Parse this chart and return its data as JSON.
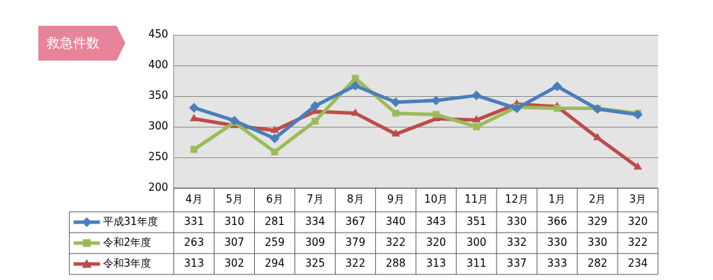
{
  "chart_data": {
    "type": "line",
    "title": "救急件数",
    "categories": [
      "4月",
      "5月",
      "6月",
      "7月",
      "8月",
      "9月",
      "10月",
      "11月",
      "12月",
      "1月",
      "2月",
      "3月"
    ],
    "series": [
      {
        "name": "平成31年度",
        "color": "#4a7ebb",
        "marker": "diamond",
        "values": [
          331,
          310,
          281,
          334,
          367,
          340,
          343,
          351,
          330,
          366,
          329,
          320
        ]
      },
      {
        "name": "令和2年度",
        "color": "#9bbb59",
        "marker": "square",
        "values": [
          263,
          307,
          259,
          309,
          379,
          322,
          320,
          300,
          332,
          330,
          330,
          322
        ]
      },
      {
        "name": "令和3年度",
        "color": "#be4b48",
        "marker": "triangle",
        "values": [
          313,
          302,
          294,
          325,
          322,
          288,
          313,
          311,
          337,
          333,
          282,
          234
        ]
      }
    ],
    "ylim": [
      200,
      450
    ],
    "yticks": [
      200,
      250,
      300,
      350,
      400,
      450
    ],
    "grid": "y",
    "legend": "bottom left",
    "data_labels": true
  }
}
